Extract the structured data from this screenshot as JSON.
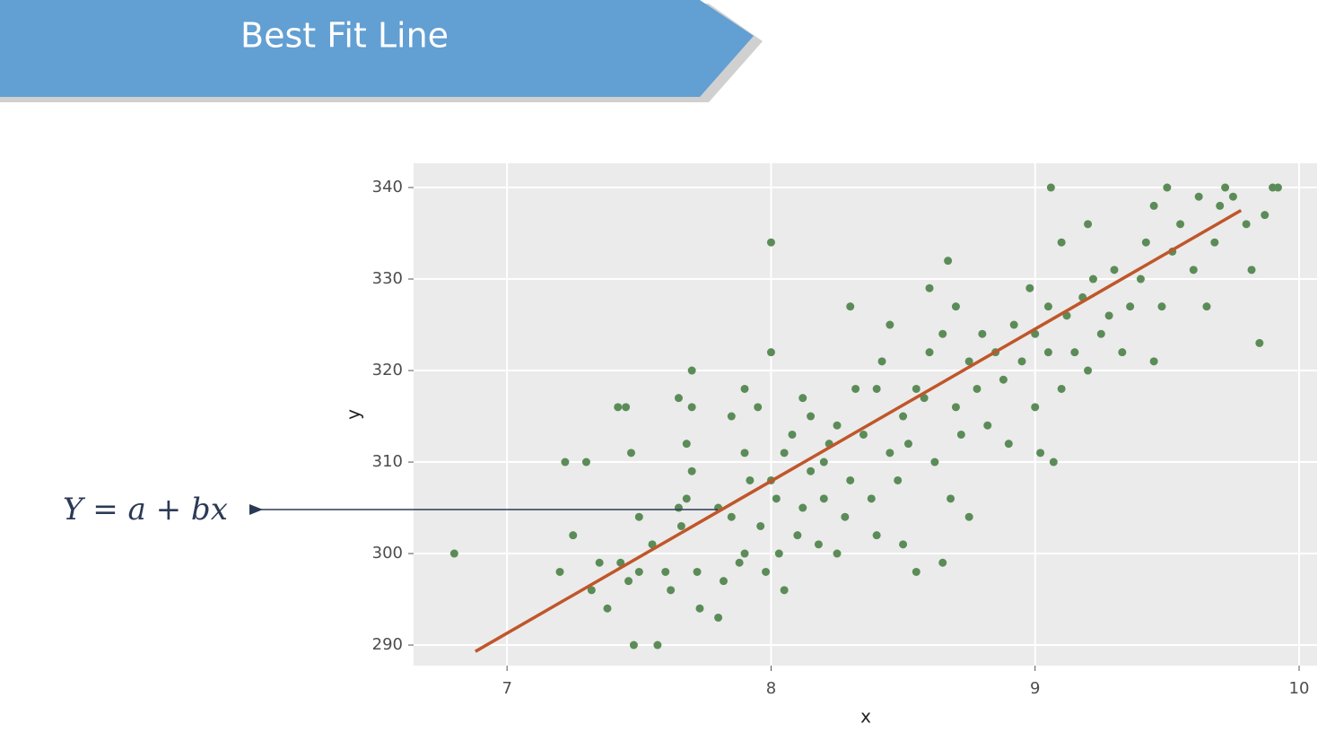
{
  "chart_data": {
    "type": "scatter",
    "title": "Best Fit Line",
    "xlabel": "x",
    "ylabel": "y",
    "annotation": "Y = a + bx",
    "color": "#5b8c58",
    "x": [
      6.8,
      7.22,
      7.3,
      7.2,
      7.25,
      7.32,
      7.35,
      7.38,
      7.42,
      7.45,
      7.47,
      7.43,
      7.46,
      7.5,
      7.48,
      7.57,
      7.5,
      7.55,
      7.6,
      7.62,
      7.65,
      7.66,
      7.65,
      7.7,
      7.7,
      7.68,
      7.7,
      7.68,
      7.72,
      7.73,
      7.8,
      7.8,
      7.82,
      7.85,
      7.85,
      7.88,
      7.9,
      7.9,
      7.9,
      7.92,
      7.95,
      7.96,
      7.98,
      8.0,
      8.0,
      8.0,
      8.02,
      8.03,
      8.05,
      8.05,
      8.08,
      8.1,
      8.12,
      8.12,
      8.15,
      8.15,
      8.18,
      8.2,
      8.2,
      8.22,
      8.25,
      8.25,
      8.28,
      8.3,
      8.3,
      8.32,
      8.35,
      8.38,
      8.4,
      8.4,
      8.42,
      8.45,
      8.45,
      8.48,
      8.5,
      8.5,
      8.52,
      8.55,
      8.55,
      8.58,
      8.6,
      8.6,
      8.62,
      8.65,
      8.65,
      8.67,
      8.68,
      8.7,
      8.7,
      8.72,
      8.75,
      8.75,
      8.78,
      8.8,
      8.82,
      8.85,
      8.88,
      8.9,
      8.92,
      8.95,
      8.98,
      9.0,
      9.0,
      9.02,
      9.05,
      9.05,
      9.07,
      9.1,
      9.1,
      9.12,
      9.15,
      9.18,
      9.2,
      9.2,
      9.22,
      9.25,
      9.28,
      9.3,
      9.33,
      9.36,
      9.4,
      9.42,
      9.45,
      9.45,
      9.48,
      9.5,
      9.52,
      9.55,
      9.6,
      9.62,
      9.65,
      9.68,
      9.7,
      9.72,
      9.75,
      9.8,
      9.82,
      9.85,
      9.87,
      9.9,
      9.92,
      9.06
    ],
    "y": [
      300,
      310,
      310,
      298,
      302,
      296,
      299,
      294,
      316,
      316,
      311,
      299,
      297,
      298,
      290,
      290,
      304,
      301,
      298,
      296,
      305,
      303,
      317,
      316,
      320,
      312,
      309,
      306,
      298,
      294,
      305,
      293,
      297,
      304,
      315,
      299,
      318,
      300,
      311,
      308,
      316,
      303,
      298,
      334,
      322,
      308,
      306,
      300,
      296,
      311,
      313,
      302,
      305,
      317,
      309,
      315,
      301,
      310,
      306,
      312,
      300,
      314,
      304,
      308,
      327,
      318,
      313,
      306,
      302,
      318,
      321,
      311,
      325,
      308,
      315,
      301,
      312,
      298,
      318,
      317,
      322,
      329,
      310,
      299,
      324,
      332,
      306,
      316,
      327,
      313,
      321,
      304,
      318,
      324,
      314,
      322,
      319,
      312,
      325,
      321,
      329,
      316,
      324,
      311,
      322,
      327,
      310,
      318,
      334,
      326,
      322,
      328,
      320,
      336,
      330,
      324,
      326,
      331,
      322,
      327,
      330,
      334,
      321,
      338,
      327,
      340,
      333,
      336,
      331,
      339,
      327,
      334,
      338,
      340,
      339,
      336,
      331,
      323,
      337,
      340,
      340,
      340
    ],
    "fit_line": {
      "color": "#c0562a",
      "x": [
        6.88,
        9.78
      ],
      "y": [
        289.3,
        337.5
      ]
    },
    "xlim": [
      6.646,
      10.068
    ],
    "ylim": [
      287.75,
      342.65
    ],
    "xticks": [
      7,
      8,
      9,
      10
    ],
    "yticks": [
      290,
      300,
      310,
      320,
      330,
      340
    ],
    "grid": true
  }
}
